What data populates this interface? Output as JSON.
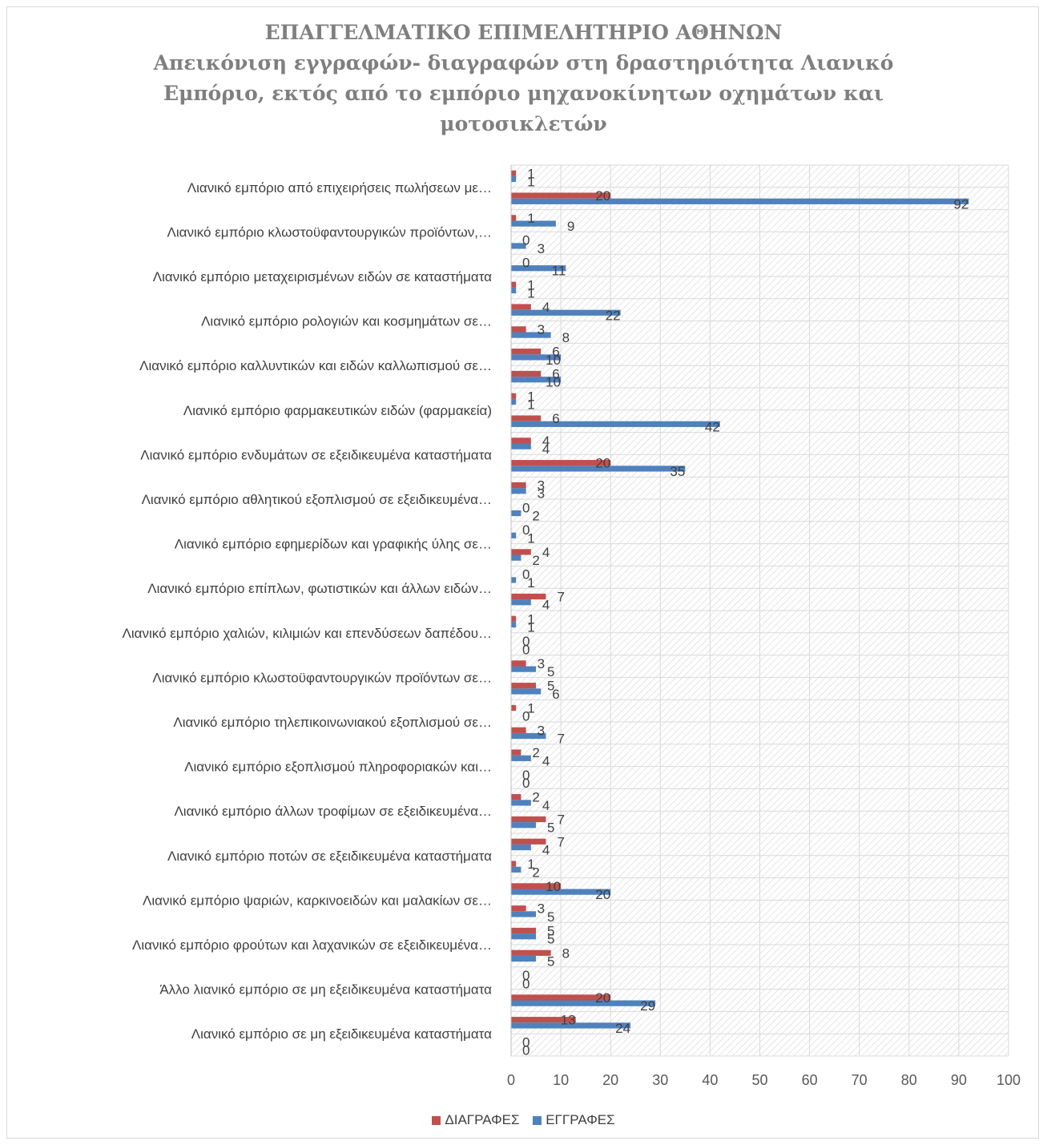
{
  "chart_data": {
    "type": "bar",
    "orientation": "horizontal",
    "title_lines": [
      "ΕΠΑΓΓΕΛΜΑΤΙΚΟ ΕΠΙΜΕΛΗΤΗΡΙΟ ΑΘΗΝΩΝ",
      "Απεικόνιση εγγραφών- διαγραφών στη δραστηριότητα Λιανικό",
      "Εμπόριο, εκτός από το εμπόριο μηχανοκίνητων οχημάτων και",
      "μοτοσικλετών"
    ],
    "xlim": [
      0,
      100
    ],
    "x_ticks": [
      "0",
      "10",
      "20",
      "30",
      "40",
      "50",
      "60",
      "70",
      "80",
      "90",
      "100"
    ],
    "legend_position": "bottom",
    "colors": {
      "deletions": "#c0504d",
      "registrations": "#4f81bd",
      "plot_hatch": "#d9d9d9",
      "grid": "#d9d9d9"
    },
    "series": [
      {
        "name": "ΔΙΑΓΡΑΦΕΣ",
        "color": "#c0504d"
      },
      {
        "name": "ΕΓΓΡΑΦΕΣ",
        "color": "#4f81bd"
      }
    ],
    "labels": [
      "Λιανικό εμπόριο από επιχειρήσεις πωλήσεων με…",
      "Λιανικό εμπόριο κλωστοϋφαντουργικών προϊόντων,…",
      "Λιανικό εμπόριο μεταχειρισμένων ειδών σε καταστήματα",
      "Λιανικό εμπόριο ρολογιών και κοσμημάτων σε…",
      "Λιανικό εμπόριο καλλυντικών και ειδών καλλωπισμού σε…",
      "Λιανικό εμπόριο φαρμακευτικών ειδών (φαρμακεία)",
      "Λιανικό εμπόριο ενδυμάτων σε εξειδικευμένα καταστήματα",
      "Λιανικό εμπόριο αθλητικού εξοπλισμού σε εξειδικευμένα…",
      "Λιανικό εμπόριο εφημερίδων και γραφικής ύλης σε…",
      "Λιανικό εμπόριο επίπλων, φωτιστικών και άλλων ειδών…",
      "Λιανικό εμπόριο χαλιών, κιλιμιών και επενδύσεων δαπέδου…",
      "Λιανικό εμπόριο κλωστοϋφαντουργικών προϊόντων σε…",
      "Λιανικό εμπόριο τηλεπικοινωνιακού εξοπλισμού σε…",
      "Λιανικό εμπόριο εξοπλισμού πληροφοριακών και…",
      "Λιανικό εμπόριο άλλων τροφίμων σε εξειδικευμένα…",
      "Λιανικό εμπόριο ποτών σε εξειδικευμένα καταστήματα",
      "Λιανικό εμπόριο ψαριών, καρκινοειδών και μαλακίων σε…",
      "Λιανικό εμπόριο φρούτων και λαχανικών σε εξειδικευμένα…",
      "Άλλο λιανικό εμπόριο σε μη εξειδικευμένα καταστήματα",
      "Λιανικό εμπόριο σε μη εξειδικευμένα καταστήματα"
    ],
    "rows": [
      {
        "deletions": 1,
        "registrations": 1
      },
      {
        "deletions": 20,
        "registrations": 92
      },
      {
        "deletions": 1,
        "registrations": 9
      },
      {
        "deletions": 0,
        "registrations": 3
      },
      {
        "deletions": 0,
        "registrations": 11
      },
      {
        "deletions": 1,
        "registrations": 1
      },
      {
        "deletions": 4,
        "registrations": 22
      },
      {
        "deletions": 3,
        "registrations": 8
      },
      {
        "deletions": 6,
        "registrations": 10
      },
      {
        "deletions": 6,
        "registrations": 10
      },
      {
        "deletions": 1,
        "registrations": 1
      },
      {
        "deletions": 6,
        "registrations": 42
      },
      {
        "deletions": 4,
        "registrations": 4
      },
      {
        "deletions": 20,
        "registrations": 35
      },
      {
        "deletions": 3,
        "registrations": 3
      },
      {
        "deletions": 0,
        "registrations": 2
      },
      {
        "deletions": 0,
        "registrations": 1
      },
      {
        "deletions": 4,
        "registrations": 2
      },
      {
        "deletions": 0,
        "registrations": 1
      },
      {
        "deletions": 7,
        "registrations": 4
      },
      {
        "deletions": 1,
        "registrations": 1
      },
      {
        "deletions": 0,
        "registrations": 0
      },
      {
        "deletions": 3,
        "registrations": 5
      },
      {
        "deletions": 5,
        "registrations": 6
      },
      {
        "deletions": 1,
        "registrations": 0
      },
      {
        "deletions": 3,
        "registrations": 7
      },
      {
        "deletions": 2,
        "registrations": 4
      },
      {
        "deletions": 0,
        "registrations": 0
      },
      {
        "deletions": 2,
        "registrations": 4
      },
      {
        "deletions": 7,
        "registrations": 5
      },
      {
        "deletions": 7,
        "registrations": 4
      },
      {
        "deletions": 1,
        "registrations": 2
      },
      {
        "deletions": 10,
        "registrations": 20
      },
      {
        "deletions": 3,
        "registrations": 5
      },
      {
        "deletions": 5,
        "registrations": 5
      },
      {
        "deletions": 8,
        "registrations": 5
      },
      {
        "deletions": 0,
        "registrations": 0
      },
      {
        "deletions": 20,
        "registrations": 29
      },
      {
        "deletions": 13,
        "registrations": 24
      },
      {
        "deletions": 0,
        "registrations": 0
      }
    ]
  }
}
